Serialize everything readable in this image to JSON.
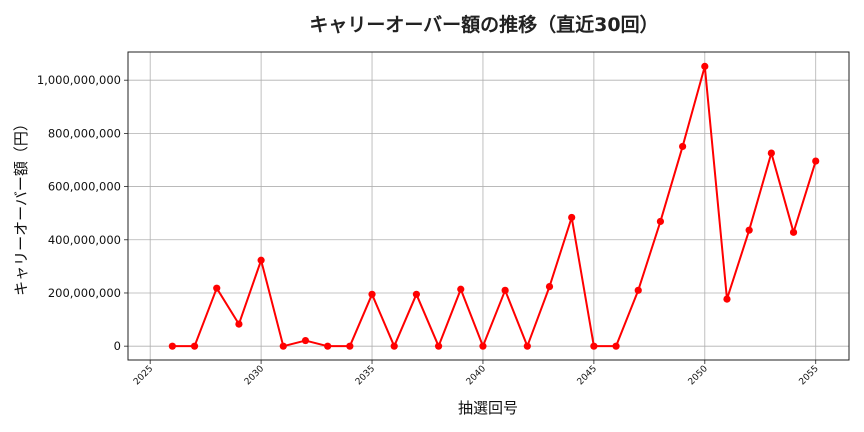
{
  "chart_data": {
    "type": "line",
    "title": "キャリーオーバー額の推移（直近30回）",
    "xlabel": "抽選回号",
    "ylabel": "キャリーオーバー額（円）",
    "x": [
      2026,
      2027,
      2028,
      2029,
      2030,
      2031,
      2032,
      2033,
      2034,
      2035,
      2036,
      2037,
      2038,
      2039,
      2040,
      2041,
      2042,
      2043,
      2044,
      2045,
      2046,
      2047,
      2048,
      2049,
      2050,
      2051,
      2052,
      2053,
      2054,
      2055
    ],
    "series": [
      {
        "name": "キャリーオーバー額",
        "color": "#ff0000",
        "marker": "circle",
        "values": [
          0,
          0,
          218000000,
          83000000,
          323000000,
          0,
          21000000,
          0,
          0,
          195000000,
          0,
          195000000,
          0,
          214000000,
          0,
          210000000,
          0,
          224000000,
          484000000,
          0,
          0,
          210000000,
          469000000,
          751000000,
          1052000000,
          177000000,
          436000000,
          726000000,
          428000000,
          696000000
        ]
      }
    ],
    "xlim": [
      2024.0,
      2056.5
    ],
    "ylim": [
      -52000000,
      1106000000
    ],
    "xticks": [
      2025,
      2030,
      2035,
      2040,
      2045,
      2050,
      2055
    ],
    "xtick_labels": [
      "2025",
      "2030",
      "2035",
      "2040",
      "2045",
      "2050",
      "2055"
    ],
    "yticks": [
      0,
      200000000,
      400000000,
      600000000,
      800000000,
      1000000000
    ],
    "ytick_labels": [
      "0",
      "200,000,000",
      "400,000,000",
      "600,000,000",
      "800,000,000",
      "1,000,000,000"
    ],
    "grid": true,
    "legend": null
  }
}
